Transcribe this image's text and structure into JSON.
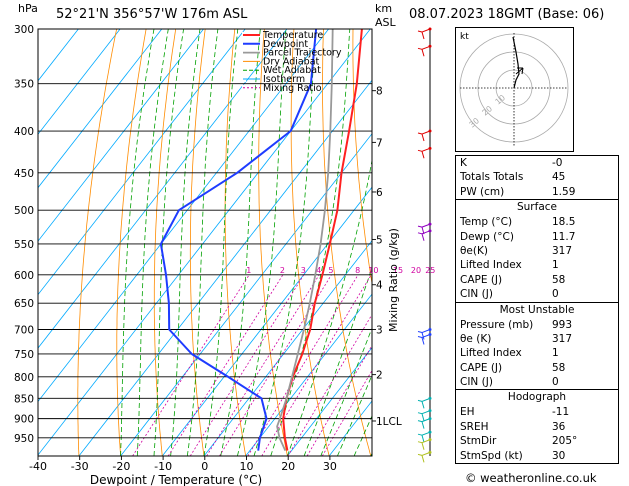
{
  "header": {
    "location": "52°21'N  356°57'W  176m  ASL",
    "datetime": "08.07.2023  18GMT  (Base: 06)",
    "hpa_label": "hPa",
    "km_label": "km",
    "asl_label": "ASL"
  },
  "legend": [
    "Temperature",
    "Dewpoint",
    "Parcel Trajectory",
    "Dry Adiabat",
    "Wet Adiabat",
    "Isotherm",
    "Mixing Ratio"
  ],
  "colors": {
    "temperature": "#ff2020",
    "dewpoint": "#1e3cff",
    "parcel": "#999999",
    "dry_adiabat": "#ff8c00",
    "wet_adiabat": "#00a000",
    "isotherm": "#00aaff",
    "mixing_ratio": "#d000a0"
  },
  "chart_data": {
    "type": "line",
    "title": "",
    "xlabel": "Dewpoint / Temperature (°C)",
    "ylabel": "Mixing Ratio (g/kg)",
    "xlim": [
      -40,
      40
    ],
    "ylim": [
      300,
      1000
    ],
    "pressure_ticks": [
      300,
      350,
      400,
      450,
      500,
      550,
      600,
      650,
      700,
      750,
      800,
      850,
      900,
      950
    ],
    "temperature_ticks": [
      -40,
      -30,
      -20,
      -10,
      0,
      10,
      20,
      30
    ],
    "km_ticks": [
      {
        "label": "8",
        "p": 357
      },
      {
        "label": "7",
        "p": 413
      },
      {
        "label": "6",
        "p": 475
      },
      {
        "label": "5",
        "p": 543
      },
      {
        "label": "4",
        "p": 617
      },
      {
        "label": "3",
        "p": 700
      },
      {
        "label": "2",
        "p": 795
      },
      {
        "label": "1LCL",
        "p": 906
      }
    ],
    "mixing_ratio_labels": [
      1,
      2,
      3,
      4,
      5,
      8,
      10,
      15,
      20,
      25
    ],
    "series": [
      {
        "name": "Temperature",
        "points": [
          [
            985,
            19
          ],
          [
            950,
            16
          ],
          [
            900,
            12
          ],
          [
            850,
            9
          ],
          [
            800,
            6.5
          ],
          [
            750,
            4.5
          ],
          [
            700,
            1.8
          ],
          [
            650,
            -2
          ],
          [
            600,
            -5.5
          ],
          [
            550,
            -9.5
          ],
          [
            500,
            -14
          ],
          [
            450,
            -20
          ],
          [
            400,
            -26
          ],
          [
            350,
            -33
          ],
          [
            300,
            -42
          ]
        ]
      },
      {
        "name": "Dewpoint",
        "points": [
          [
            985,
            12
          ],
          [
            950,
            10
          ],
          [
            900,
            8
          ],
          [
            850,
            3
          ],
          [
            800,
            -9
          ],
          [
            750,
            -22
          ],
          [
            700,
            -32
          ],
          [
            650,
            -37
          ],
          [
            600,
            -43
          ],
          [
            550,
            -50
          ],
          [
            500,
            -52
          ],
          [
            450,
            -45
          ],
          [
            400,
            -40
          ],
          [
            350,
            -44
          ],
          [
            300,
            -53
          ]
        ]
      },
      {
        "name": "Parcel Trajectory",
        "points": [
          [
            985,
            18.5
          ],
          [
            950,
            14.7
          ],
          [
            920,
            12
          ],
          [
            900,
            11.2
          ],
          [
            850,
            9
          ],
          [
            800,
            6.3
          ],
          [
            750,
            3.4
          ],
          [
            700,
            0.3
          ],
          [
            650,
            -3.2
          ],
          [
            600,
            -7.2
          ],
          [
            550,
            -11.7
          ],
          [
            500,
            -17
          ],
          [
            450,
            -23.2
          ],
          [
            400,
            -30.5
          ],
          [
            350,
            -39
          ],
          [
            300,
            -49
          ]
        ]
      }
    ]
  },
  "hodograph": {
    "label": "kt",
    "ring_labels": [
      "10",
      "20",
      "30"
    ]
  },
  "indices": [
    {
      "label": "K",
      "value": "-0"
    },
    {
      "label": "Totals Totals",
      "value": "45"
    },
    {
      "label": "PW (cm)",
      "value": "1.59"
    }
  ],
  "surface": {
    "title": "Surface",
    "rows": [
      {
        "label": "Temp (°C)",
        "value": "18.5"
      },
      {
        "label": "Dewp (°C)",
        "value": "11.7"
      },
      {
        "label": "θe(K)",
        "value": "317"
      },
      {
        "label": "Lifted Index",
        "value": "1"
      },
      {
        "label": "CAPE (J)",
        "value": "58"
      },
      {
        "label": "CIN (J)",
        "value": "0"
      }
    ]
  },
  "most_unstable": {
    "title": "Most Unstable",
    "rows": [
      {
        "label": "Pressure (mb)",
        "value": "993"
      },
      {
        "label": "θe (K)",
        "value": "317"
      },
      {
        "label": "Lifted Index",
        "value": "1"
      },
      {
        "label": "CAPE (J)",
        "value": "58"
      },
      {
        "label": "CIN (J)",
        "value": "0"
      }
    ]
  },
  "hodograph_table": {
    "title": "Hodograph",
    "rows": [
      {
        "label": "EH",
        "value": "-11"
      },
      {
        "label": "SREH",
        "value": "36"
      },
      {
        "label": "StmDir",
        "value": "205°"
      },
      {
        "label": "StmSpd (kt)",
        "value": "30"
      }
    ]
  },
  "credit": "© weatheronline.co.uk"
}
